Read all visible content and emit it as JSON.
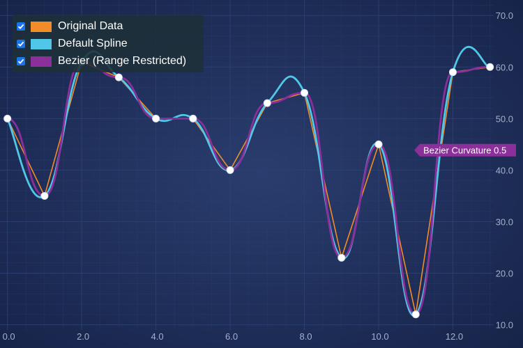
{
  "chart_data": {
    "type": "line",
    "title": "",
    "xlabel": "",
    "ylabel": "",
    "xlim": [
      -0.2,
      13.1
    ],
    "ylim": [
      9.0,
      73.0
    ],
    "x_ticks": [
      "0.0",
      "2.0",
      "4.0",
      "6.0",
      "8.0",
      "10.0",
      "12.0"
    ],
    "y_ticks": [
      "10.0",
      "20.0",
      "30.0",
      "40.0",
      "50.0",
      "60.0",
      "70.0"
    ],
    "x": [
      0,
      1,
      2,
      3,
      4,
      5,
      6,
      7,
      8,
      9,
      10,
      11,
      12,
      13
    ],
    "points": [
      50,
      35,
      61,
      58,
      50,
      50,
      40,
      53,
      55,
      23,
      45,
      12,
      59,
      60
    ],
    "series": [
      {
        "name": "Original Data",
        "color": "#f28c28",
        "interpolation": "linear"
      },
      {
        "name": "Default Spline",
        "color": "#50c7e6",
        "interpolation": "spline"
      },
      {
        "name": "Bezier (Range Restricted)",
        "color": "#8b2f9b",
        "interpolation": "bezier"
      }
    ],
    "annotation": {
      "text": "Bezier Curvature 0.5",
      "y": 44,
      "color": "#8b2f9b"
    },
    "grid": true,
    "legend_position": "top-left"
  },
  "colors": {
    "background_center": "#2a3d6e",
    "background_edge": "#17244a",
    "grid": "#2e4272",
    "tick_label": "#a4b0cc",
    "marker_fill": "#ffffff",
    "checkbox": "#1a73e8"
  },
  "legend": {
    "items": [
      {
        "label": "Original Data",
        "checked": true
      },
      {
        "label": "Default Spline",
        "checked": true
      },
      {
        "label": "Bezier (Range Restricted)",
        "checked": true
      }
    ]
  }
}
